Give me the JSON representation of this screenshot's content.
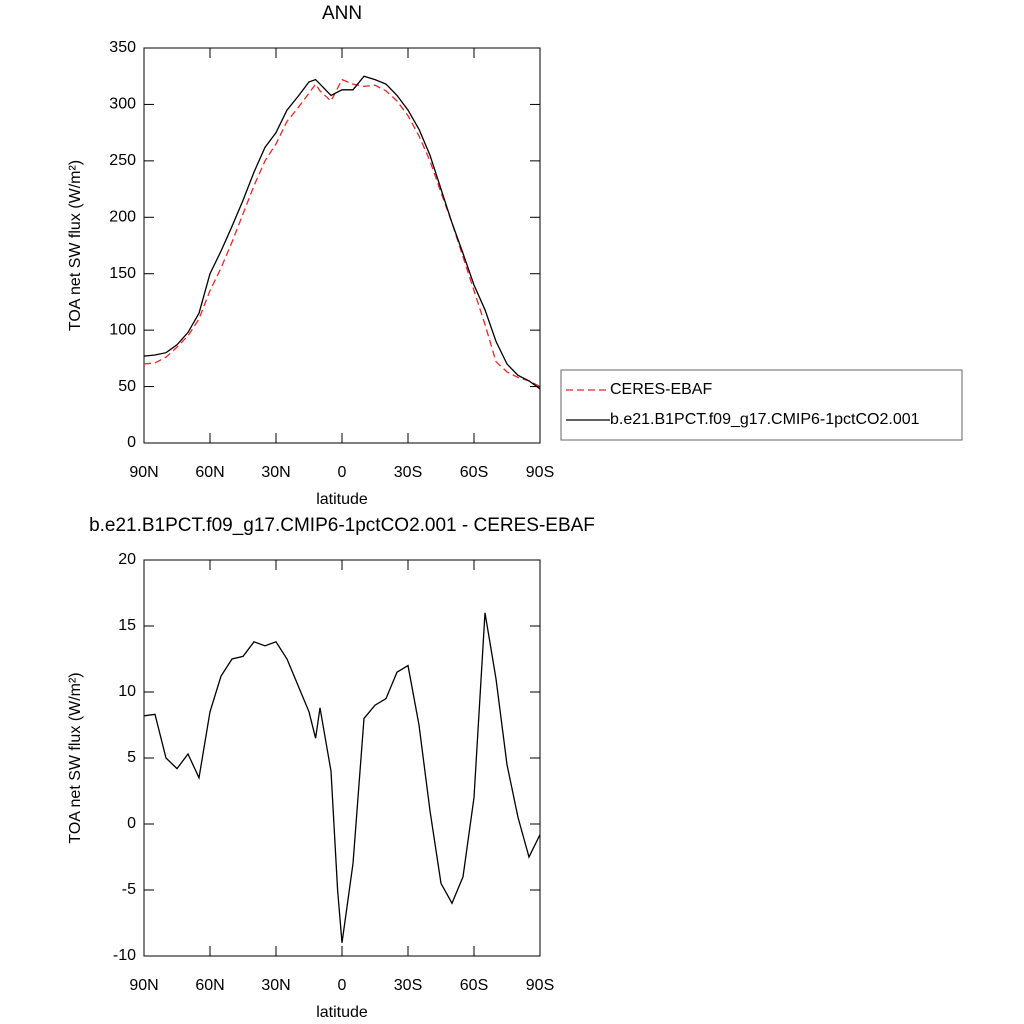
{
  "chart_data": [
    {
      "type": "line",
      "title": "ANN",
      "x_label": "latitude",
      "y_label": "TOA net SW flux (W/m²)",
      "x": [
        90,
        85,
        80,
        75,
        70,
        65,
        60,
        55,
        50,
        45,
        40,
        35,
        30,
        25,
        20,
        15,
        12,
        10,
        5,
        0,
        -5,
        -10,
        -15,
        -20,
        -25,
        -30,
        -35,
        -40,
        -45,
        -50,
        -55,
        -60,
        -65,
        -70,
        -75,
        -80,
        -85,
        -90
      ],
      "series": [
        {
          "name": "CERES-EBAF",
          "color": "#e8262a",
          "linestyle": "dashed",
          "values": [
            70,
            71,
            76,
            85,
            95,
            110,
            135,
            155,
            178,
            203,
            228,
            250,
            265,
            285,
            297,
            310,
            318,
            312,
            303,
            322,
            318,
            316,
            317,
            312,
            303,
            290,
            272,
            250,
            222,
            195,
            165,
            135,
            105,
            72,
            63,
            58,
            55,
            50
          ]
        },
        {
          "name": "b.e21.B1PCT.f09_g17.CMIP6-1pctCO2.001",
          "color": "#000000",
          "linestyle": "solid",
          "values": [
            77,
            78,
            80,
            87,
            98,
            115,
            150,
            170,
            192,
            215,
            240,
            262,
            275,
            295,
            307,
            320,
            322,
            318,
            308,
            313,
            313,
            325,
            322,
            318,
            308,
            295,
            278,
            255,
            225,
            195,
            168,
            140,
            118,
            90,
            70,
            60,
            55,
            48
          ]
        }
      ],
      "xlim": [
        90,
        -90
      ],
      "xticks": [
        {
          "value": 90,
          "label": "90N"
        },
        {
          "value": 60,
          "label": "60N"
        },
        {
          "value": 30,
          "label": "30N"
        },
        0,
        {
          "value": -30,
          "label": "30S"
        },
        {
          "value": -60,
          "label": "60S"
        },
        {
          "value": -90,
          "label": "90S"
        }
      ],
      "ylim": [
        0,
        350
      ],
      "yticks": [
        0,
        50,
        100,
        150,
        200,
        250,
        300,
        350
      ],
      "legend": "right"
    },
    {
      "type": "line",
      "title": "b.e21.B1PCT.f09_g17.CMIP6-1pctCO2.001 - CERES-EBAF",
      "x_label": "latitude",
      "y_label": "TOA net SW flux (W/m²)",
      "x": [
        90,
        85,
        80,
        75,
        70,
        65,
        60,
        55,
        50,
        45,
        40,
        35,
        30,
        25,
        20,
        15,
        12,
        10,
        5,
        2,
        0,
        -5,
        -10,
        -15,
        -20,
        -25,
        -30,
        -35,
        -40,
        -45,
        -50,
        -55,
        -60,
        -65,
        -70,
        -75,
        -80,
        -85,
        -90
      ],
      "values": [
        8.2,
        8.3,
        5,
        4.2,
        5.3,
        3.5,
        8.5,
        11.2,
        12.5,
        12.7,
        13.8,
        13.5,
        13.8,
        12.5,
        10.5,
        8.5,
        6.5,
        8.8,
        4,
        -5,
        -9,
        -3,
        8,
        9,
        9.5,
        11.5,
        12,
        7.5,
        1,
        -4.5,
        -6,
        -4,
        2,
        16,
        11,
        4.5,
        0.5,
        -2.5,
        -0.8
      ],
      "color": "#000000",
      "xlim": [
        90,
        -90
      ],
      "xticks": [
        {
          "value": 90,
          "label": "90N"
        },
        {
          "value": 60,
          "label": "60N"
        },
        {
          "value": 30,
          "label": "30N"
        },
        0,
        {
          "value": -30,
          "label": "30S"
        },
        {
          "value": -60,
          "label": "60S"
        },
        {
          "value": -90,
          "label": "90S"
        }
      ],
      "ylim": [
        -10,
        20
      ],
      "yticks": [
        -10,
        -5,
        0,
        5,
        10,
        15,
        20
      ]
    }
  ]
}
